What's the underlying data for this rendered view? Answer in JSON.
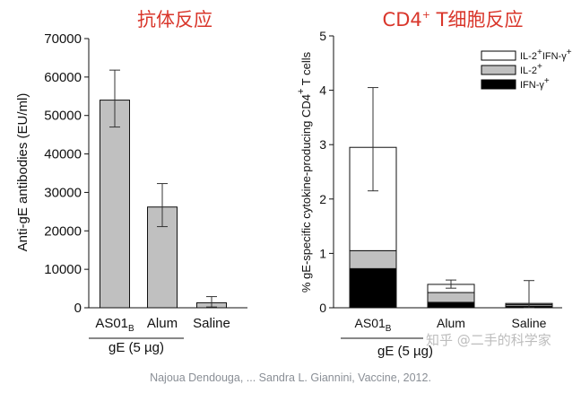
{
  "chart_data": [
    {
      "type": "bar",
      "title": "抗体反应",
      "ylabel": "Anti-gE antibodies (EU/ml)",
      "ylim": [
        0,
        70000
      ],
      "yticks": [
        "0",
        "10000",
        "20000",
        "30000",
        "40000",
        "50000",
        "60000",
        "70000"
      ],
      "categories": [
        {
          "base": "AS01",
          "subscript": "B"
        },
        {
          "base": "Alum",
          "subscript": ""
        },
        {
          "base": "Saline",
          "subscript": ""
        }
      ],
      "group_label": "gE (5 µg)",
      "values": [
        54000,
        26200,
        1300
      ],
      "error_low": [
        47000,
        21100,
        200
      ],
      "error_high": [
        61800,
        32300,
        2900
      ],
      "bar_color": "#c0c0c0"
    },
    {
      "type": "bar",
      "stacked": true,
      "title": {
        "base": "CD4",
        "sup": "+",
        "rest": " T细胞反应"
      },
      "ylabel": {
        "part1": "% gE-specific cytokine-producing CD4",
        "sup": "+",
        "part2": " T cells"
      },
      "ylim": [
        0,
        5
      ],
      "yticks": [
        "0",
        "1",
        "2",
        "3",
        "4",
        "5"
      ],
      "categories": [
        {
          "base": "AS01",
          "subscript": "B"
        },
        {
          "base": "Alum",
          "subscript": ""
        },
        {
          "base": "Saline",
          "subscript": ""
        }
      ],
      "group_label": "gE (5 µg)",
      "legend_position": "top-right",
      "series": [
        {
          "name": {
            "a": "IFN-γ",
            "a_sup": "+"
          },
          "color": "#000000",
          "values": [
            0.72,
            0.1,
            0.03
          ]
        },
        {
          "name": {
            "a": "IL-2",
            "a_sup": "+"
          },
          "color": "#c0c0c0",
          "values": [
            0.33,
            0.18,
            0.03
          ]
        },
        {
          "name": {
            "a": "IL-2",
            "a_sup": "+",
            "b": "IFN-γ",
            "b_sup": "+"
          },
          "color": "#ffffff",
          "values": [
            1.9,
            0.15,
            0.02
          ]
        }
      ],
      "totals": [
        2.95,
        0.43,
        0.08
      ],
      "error_low": [
        2.15,
        0.36,
        0.0
      ],
      "error_high": [
        4.05,
        0.51,
        0.5
      ]
    }
  ],
  "citation": "Najoua Dendouga, ... Sandra L. Giannini, Vaccine, 2012.",
  "watermark": "知乎 @二手的科学家"
}
